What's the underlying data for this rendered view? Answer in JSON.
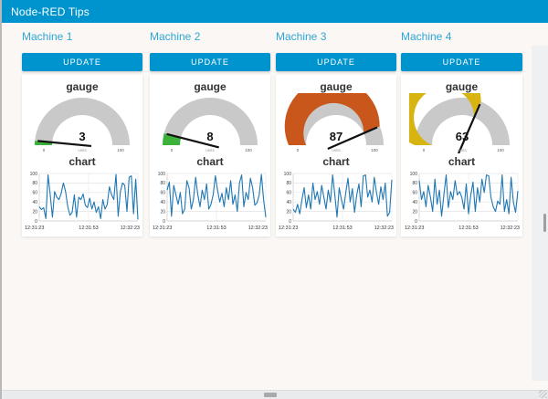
{
  "window": {
    "header_title": "Node-RED Tips"
  },
  "colors": {
    "header_bg": "#0094CE",
    "button_bg": "#0094CE",
    "machine_title": "#2ea7d8",
    "gauge_track": "#c9c9c9",
    "chart_line": "#1f77b4",
    "page_bg": "#faf7f4",
    "card_bg": "#ffffff"
  },
  "scrollbars": {
    "horizontal_thumb": "h-scrollbar-thumb",
    "vertical_thumb": "v-scrollbar-thumb"
  },
  "machines": [
    {
      "name": "Machine 1",
      "button_label": "UPDATE",
      "gauge": {
        "title": "gauge",
        "value": 3,
        "min": "0",
        "max": "100",
        "units": "units",
        "color": "#3bb33a"
      },
      "chart": {
        "title": "chart"
      }
    },
    {
      "name": "Machine 2",
      "button_label": "UPDATE",
      "gauge": {
        "title": "gauge",
        "value": 8,
        "min": "0",
        "max": "100",
        "units": "units",
        "color": "#3bb33a"
      },
      "chart": {
        "title": "chart"
      }
    },
    {
      "name": "Machine 3",
      "button_label": "UPDATE",
      "gauge": {
        "title": "gauge",
        "value": 87,
        "min": "0",
        "max": "100",
        "units": "units",
        "color": "#c9571c"
      },
      "chart": {
        "title": "chart"
      }
    },
    {
      "name": "Machine 4",
      "button_label": "UPDATE",
      "gauge": {
        "title": "gauge",
        "value": 63,
        "min": "0",
        "max": "100",
        "units": "units",
        "color": "#d8b411"
      },
      "chart": {
        "title": "chart"
      }
    }
  ],
  "chart_data": [
    {
      "type": "line",
      "title": "chart",
      "series_name": "Machine 1",
      "x_ticks": [
        "12:31:23",
        "12:31:53",
        "12:32:23"
      ],
      "y_ticks": [
        0,
        20,
        40,
        60,
        80,
        100
      ],
      "ylim": [
        0,
        100
      ],
      "grid": true,
      "line_color": "#1f77b4",
      "values": [
        30,
        24,
        28,
        5,
        97,
        55,
        8,
        62,
        50,
        45,
        58,
        80,
        62,
        30,
        12,
        18,
        55,
        8,
        50,
        45,
        57,
        33,
        28,
        48,
        25,
        40,
        18,
        30,
        5,
        45,
        25,
        35,
        72,
        55,
        45,
        98,
        10,
        62,
        80,
        75,
        20,
        92,
        95,
        15,
        88,
        3
      ]
    },
    {
      "type": "line",
      "title": "chart",
      "series_name": "Machine 2",
      "x_ticks": [
        "12:31:23",
        "12:31:53",
        "12:32:23"
      ],
      "y_ticks": [
        0,
        20,
        40,
        60,
        80,
        100
      ],
      "ylim": [
        0,
        100
      ],
      "grid": true,
      "line_color": "#1f77b4",
      "values": [
        65,
        82,
        10,
        75,
        55,
        35,
        60,
        15,
        25,
        85,
        70,
        25,
        45,
        92,
        55,
        30,
        65,
        45,
        78,
        25,
        35,
        55,
        95,
        65,
        40,
        58,
        30,
        70,
        45,
        85,
        35,
        55,
        20,
        80,
        97,
        30,
        60,
        45,
        90,
        70,
        33,
        38,
        55,
        98,
        45,
        8
      ]
    },
    {
      "type": "line",
      "title": "chart",
      "series_name": "Machine 3",
      "x_ticks": [
        "12:31:23",
        "12:31:53",
        "12:32:23"
      ],
      "y_ticks": [
        0,
        20,
        40,
        60,
        80,
        100
      ],
      "ylim": [
        0,
        100
      ],
      "grid": true,
      "line_color": "#1f77b4",
      "values": [
        25,
        18,
        35,
        15,
        45,
        70,
        28,
        55,
        25,
        80,
        45,
        62,
        35,
        75,
        50,
        25,
        65,
        40,
        97,
        55,
        8,
        70,
        45,
        25,
        60,
        90,
        40,
        68,
        18,
        55,
        78,
        30,
        95,
        97,
        50,
        65,
        40,
        92,
        60,
        35,
        72,
        45,
        80,
        10,
        18,
        87
      ]
    },
    {
      "type": "line",
      "title": "chart",
      "series_name": "Machine 4",
      "x_ticks": [
        "12:31:23",
        "12:31:53",
        "12:32:23"
      ],
      "y_ticks": [
        0,
        20,
        40,
        60,
        80,
        100
      ],
      "ylim": [
        0,
        100
      ],
      "grid": true,
      "line_color": "#1f77b4",
      "values": [
        85,
        45,
        62,
        30,
        75,
        50,
        20,
        88,
        35,
        65,
        10,
        55,
        97,
        28,
        62,
        45,
        85,
        55,
        62,
        50,
        25,
        78,
        15,
        55,
        82,
        20,
        70,
        40,
        88,
        60,
        97,
        95,
        50,
        30,
        20,
        42,
        35,
        97,
        20,
        45,
        15,
        92,
        40,
        18,
        63
      ]
    }
  ]
}
